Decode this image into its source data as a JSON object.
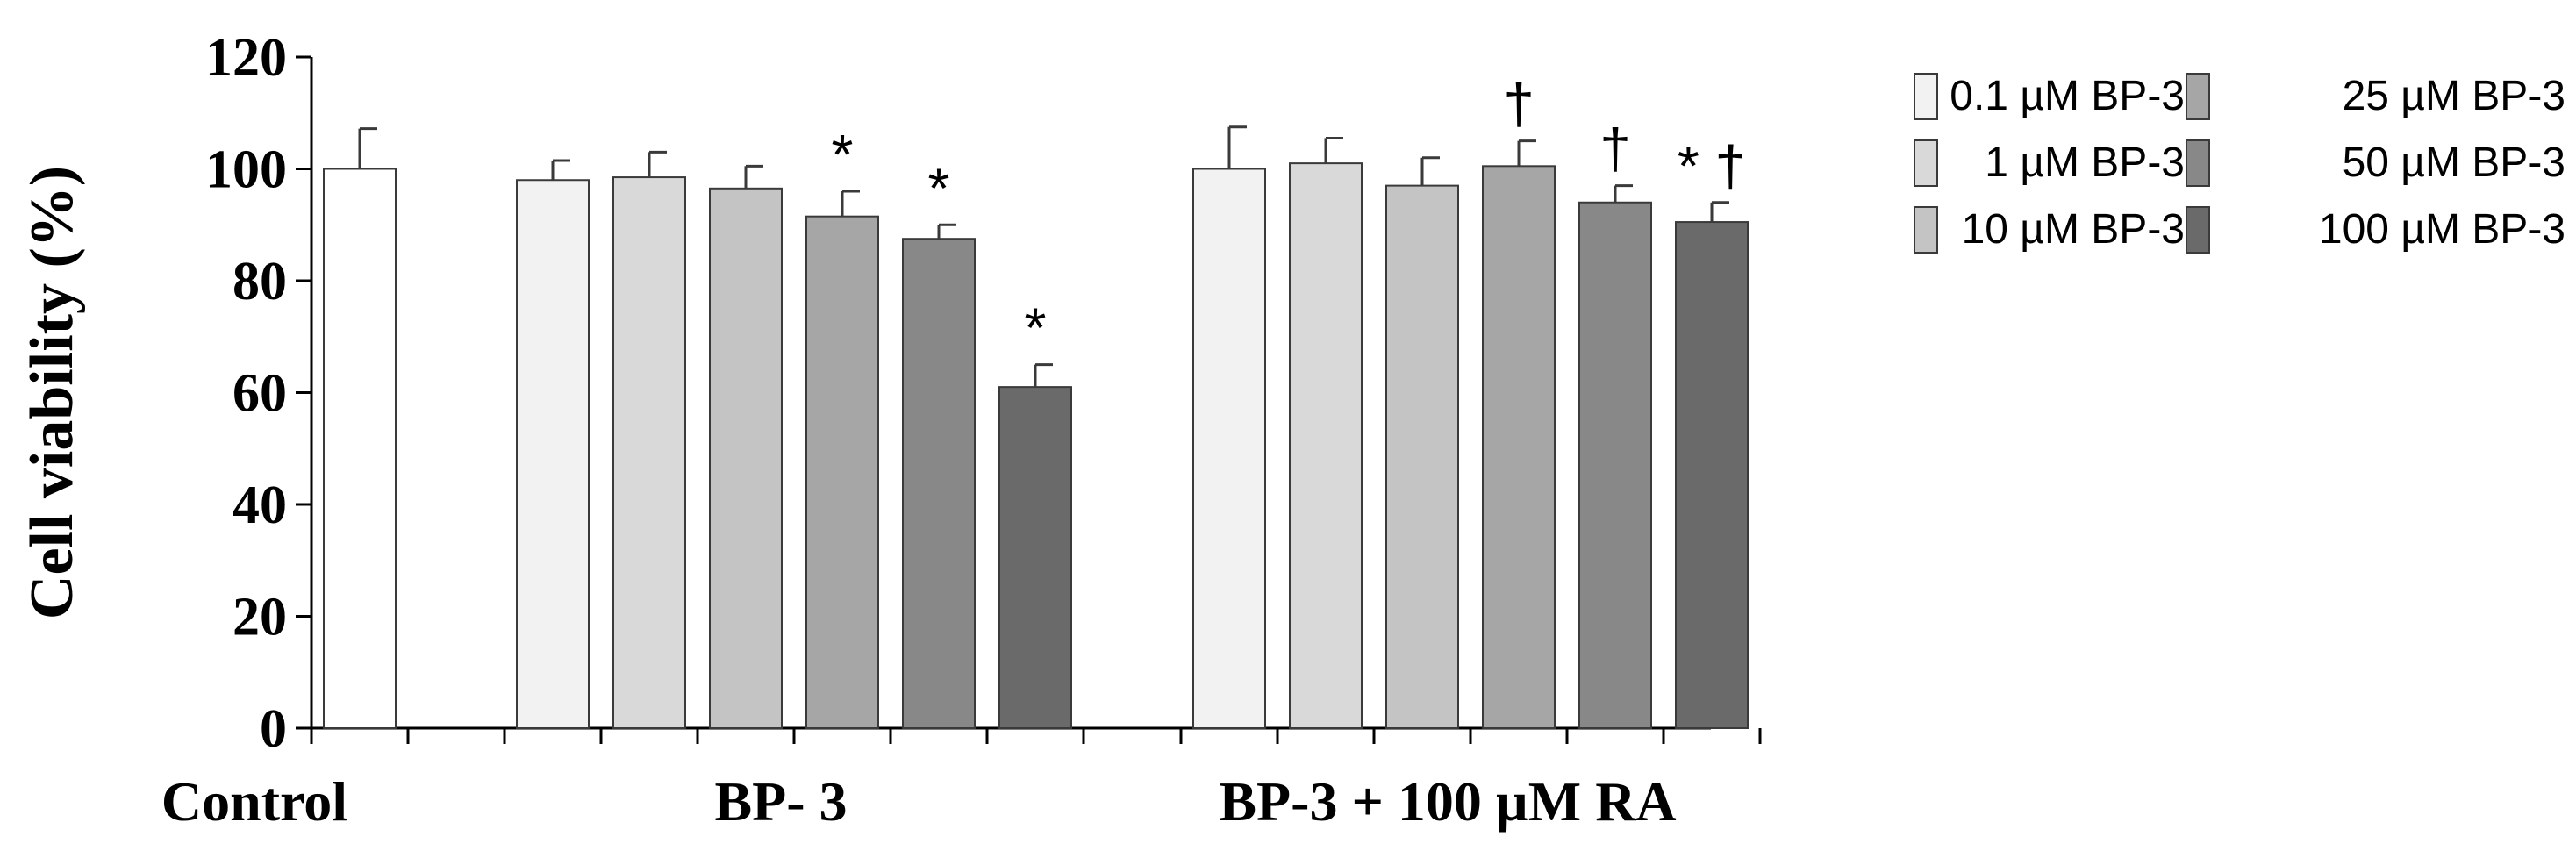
{
  "chart_data": {
    "type": "bar",
    "ylabel": "Cell viability  (%)",
    "ylim": [
      0,
      120
    ],
    "yticks": [
      "0",
      "20",
      "40",
      "60",
      "80",
      "100",
      "120"
    ],
    "error_bars": true,
    "grid": false,
    "legend_position": "top-right",
    "groups": [
      {
        "label": "Control",
        "bars": [
          {
            "series": "Control",
            "value": 100,
            "error": 7.2,
            "annotation": ""
          }
        ]
      },
      {
        "label": "BP- 3",
        "bars": [
          {
            "series": "0.1 µM BP-3",
            "value": 98,
            "error": 3.5,
            "annotation": ""
          },
          {
            "series": "1 µM BP-3",
            "value": 98.5,
            "error": 4.5,
            "annotation": ""
          },
          {
            "series": "10 µM BP-3",
            "value": 96.5,
            "error": 4,
            "annotation": ""
          },
          {
            "series": "25 µM BP-3",
            "value": 91.5,
            "error": 4.5,
            "annotation": "*"
          },
          {
            "series": "50 µM BP-3",
            "value": 87.5,
            "error": 2.5,
            "annotation": "*"
          },
          {
            "series": "100 µM BP-3",
            "value": 61,
            "error": 4,
            "annotation": "*"
          }
        ]
      },
      {
        "label": "BP-3 + 100 µM RA",
        "bars": [
          {
            "series": "0.1 µM BP-3",
            "value": 100,
            "error": 7.5,
            "annotation": ""
          },
          {
            "series": "1 µM BP-3",
            "value": 101,
            "error": 4.5,
            "annotation": ""
          },
          {
            "series": "10 µM BP-3",
            "value": 97,
            "error": 5,
            "annotation": ""
          },
          {
            "series": "25 µM BP-3",
            "value": 100.5,
            "error": 4.5,
            "annotation": "†"
          },
          {
            "series": "50 µM BP-3",
            "value": 94,
            "error": 3,
            "annotation": "†"
          },
          {
            "series": "100 µM BP-3",
            "value": 90.5,
            "error": 3.5,
            "annotation": "* †"
          }
        ]
      }
    ],
    "series_colors": {
      "Control": "#ffffff",
      "0.1 µM BP-3": "#f2f2f2",
      "1 µM BP-3": "#d9d9d9",
      "10 µM BP-3": "#c4c4c4",
      "25 µM BP-3": "#a6a6a6",
      "50 µM BP-3": "#888888",
      "100 µM BP-3": "#6a6a6a"
    },
    "legend": {
      "columns": [
        [
          "0.1 µM BP-3",
          "1 µM BP-3",
          "10 µM BP-3"
        ],
        [
          "25 µM BP-3",
          "50 µM BP-3",
          "100 µM BP-3"
        ]
      ]
    }
  }
}
